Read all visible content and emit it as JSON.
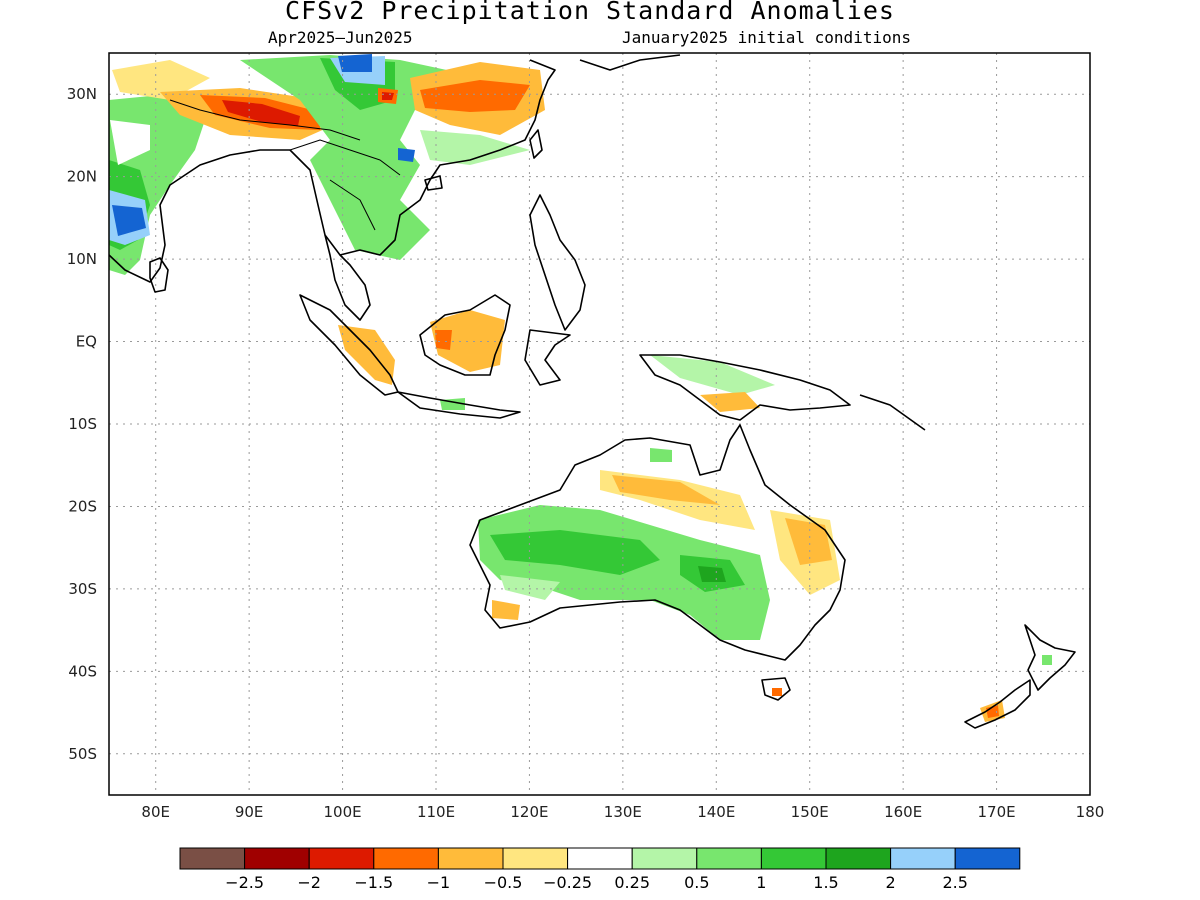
{
  "title": "CFSv2 Precipitation Standard Anomalies",
  "subtitle_left": "Apr2025–Jun2025",
  "subtitle_right": "January2025 initial conditions",
  "colors": {
    "land_outline": "#000000",
    "grid": "#9a9a9a"
  },
  "map": {
    "lon_range": [
      75,
      180
    ],
    "lat_range": [
      -55,
      35
    ],
    "x_ticks": [
      {
        "lon": 80,
        "label": "80E"
      },
      {
        "lon": 90,
        "label": "90E"
      },
      {
        "lon": 100,
        "label": "100E"
      },
      {
        "lon": 110,
        "label": "110E"
      },
      {
        "lon": 120,
        "label": "120E"
      },
      {
        "lon": 130,
        "label": "130E"
      },
      {
        "lon": 140,
        "label": "140E"
      },
      {
        "lon": 150,
        "label": "150E"
      },
      {
        "lon": 160,
        "label": "160E"
      },
      {
        "lon": 170,
        "label": "170E"
      },
      {
        "lon": 180,
        "label": "180"
      }
    ],
    "y_ticks": [
      {
        "lat": 30,
        "label": "30N"
      },
      {
        "lat": 20,
        "label": "20N"
      },
      {
        "lat": 10,
        "label": "10N"
      },
      {
        "lat": 0,
        "label": "EQ"
      },
      {
        "lat": -10,
        "label": "10S"
      },
      {
        "lat": -20,
        "label": "20S"
      },
      {
        "lat": -30,
        "label": "30S"
      },
      {
        "lat": -40,
        "label": "40S"
      },
      {
        "lat": -50,
        "label": "50S"
      }
    ]
  },
  "legend": {
    "colors": [
      "#7a4f45",
      "#a00000",
      "#dd1a00",
      "#ff6a00",
      "#ffbb3a",
      "#ffe680",
      "#ffffff",
      "#b4f5a8",
      "#78e66e",
      "#34c836",
      "#1ea51e",
      "#96d0fa",
      "#1464d2"
    ],
    "labels": [
      "−2.5",
      "−2",
      "−1.5",
      "−1",
      "−0.5",
      "−0.25",
      "0.25",
      "0.5",
      "1",
      "1.5",
      "2",
      "2.5"
    ]
  }
}
